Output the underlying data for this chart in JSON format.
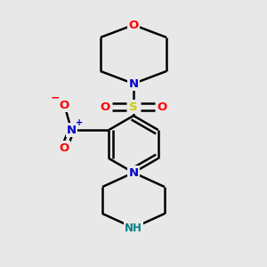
{
  "background_color": "#e8e8e8",
  "atom_colors": {
    "O": "#ff0000",
    "N": "#0000cd",
    "S": "#cccc00",
    "NH": "#008080",
    "C": "#000000",
    "Nplus": "#0000cd"
  },
  "line_color": "#000000",
  "line_width": 1.8
}
